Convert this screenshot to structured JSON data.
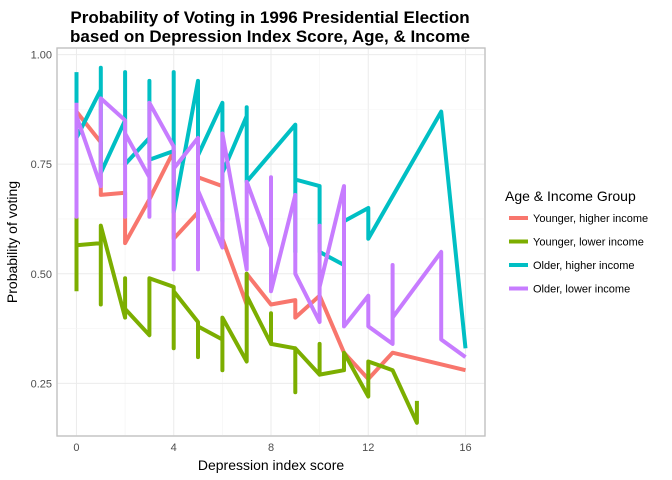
{
  "chart_data": {
    "type": "line",
    "title": "Probability of Voting in 1996 Presidential Election",
    "subtitle": "based on Depression Index Score, Age, & Income",
    "xlabel": "Depression index score",
    "ylabel": "Probability of voting",
    "xlim": [
      -0.8,
      16.8
    ],
    "ylim": [
      0.13,
      1.015
    ],
    "x_ticks": [
      0,
      4,
      8,
      12,
      16
    ],
    "x_tick_labels": [
      "0",
      "4",
      "8",
      "12",
      "16"
    ],
    "y_ticks": [
      0.25,
      0.5,
      0.75,
      1.0
    ],
    "y_tick_labels": [
      "0.25",
      "0.50",
      "0.75",
      "1.00"
    ],
    "grid": true,
    "legend_title": "Age & Income Group",
    "legend_position": "right",
    "series": [
      {
        "name": "Younger, higher income",
        "color": "#F8766D",
        "points": [
          [
            0,
            0.72
          ],
          [
            0,
            0.87
          ],
          [
            1,
            0.8
          ],
          [
            1,
            0.68
          ],
          [
            2,
            0.685
          ],
          [
            2,
            0.57
          ],
          [
            3,
            0.67
          ],
          [
            4,
            0.78
          ],
          [
            4,
            0.58
          ],
          [
            5,
            0.64
          ],
          [
            5,
            0.72
          ],
          [
            6,
            0.7
          ],
          [
            6,
            0.58
          ],
          [
            7,
            0.43
          ],
          [
            7,
            0.5
          ],
          [
            8,
            0.43
          ],
          [
            9,
            0.44
          ],
          [
            9,
            0.4
          ],
          [
            10,
            0.45
          ],
          [
            11,
            0.32
          ],
          [
            12,
            0.26
          ],
          [
            13,
            0.32
          ],
          [
            16,
            0.28
          ]
        ]
      },
      {
        "name": "Younger, lower income",
        "color": "#7CAE00",
        "points": [
          [
            0,
            0.46
          ],
          [
            0,
            0.63
          ],
          [
            0,
            0.565
          ],
          [
            1,
            0.57
          ],
          [
            1,
            0.43
          ],
          [
            1,
            0.61
          ],
          [
            2,
            0.4
          ],
          [
            2,
            0.49
          ],
          [
            2,
            0.42
          ],
          [
            3,
            0.36
          ],
          [
            3,
            0.49
          ],
          [
            4,
            0.47
          ],
          [
            4,
            0.33
          ],
          [
            4,
            0.46
          ],
          [
            5,
            0.39
          ],
          [
            5,
            0.31
          ],
          [
            5,
            0.38
          ],
          [
            6,
            0.35
          ],
          [
            6,
            0.28
          ],
          [
            6,
            0.4
          ],
          [
            7,
            0.3
          ],
          [
            7,
            0.5
          ],
          [
            7,
            0.45
          ],
          [
            8,
            0.34
          ],
          [
            8,
            0.41
          ],
          [
            8,
            0.34
          ],
          [
            9,
            0.33
          ],
          [
            9,
            0.23
          ],
          [
            9,
            0.33
          ],
          [
            10,
            0.27
          ],
          [
            10,
            0.34
          ],
          [
            10,
            0.27
          ],
          [
            11,
            0.28
          ],
          [
            11,
            0.32
          ],
          [
            12,
            0.22
          ],
          [
            12,
            0.3
          ],
          [
            13,
            0.28
          ],
          [
            14,
            0.16
          ],
          [
            14,
            0.21
          ]
        ]
      },
      {
        "name": "Older, higher income",
        "color": "#00BFC4",
        "points": [
          [
            0,
            0.96
          ],
          [
            0,
            0.81
          ],
          [
            1,
            0.92
          ],
          [
            1,
            0.97
          ],
          [
            1,
            0.73
          ],
          [
            2,
            0.85
          ],
          [
            2,
            0.96
          ],
          [
            2,
            0.75
          ],
          [
            3,
            0.81
          ],
          [
            3,
            0.94
          ],
          [
            3,
            0.76
          ],
          [
            4,
            0.78
          ],
          [
            4,
            0.96
          ],
          [
            4,
            0.64
          ],
          [
            5,
            0.94
          ],
          [
            5,
            0.77
          ],
          [
            6,
            0.89
          ],
          [
            6,
            0.62
          ],
          [
            6,
            0.73
          ],
          [
            7,
            0.86
          ],
          [
            7,
            0.88
          ],
          [
            7,
            0.71
          ],
          [
            9,
            0.84
          ],
          [
            9,
            0.55
          ],
          [
            9,
            0.715
          ],
          [
            10,
            0.7
          ],
          [
            10,
            0.55
          ],
          [
            11,
            0.52
          ],
          [
            11,
            0.62
          ],
          [
            12,
            0.65
          ],
          [
            12,
            0.58
          ],
          [
            15,
            0.87
          ],
          [
            16,
            0.33
          ]
        ]
      },
      {
        "name": "Older, lower income",
        "color": "#C77CFF",
        "points": [
          [
            0,
            0.89
          ],
          [
            0,
            0.63
          ],
          [
            0,
            0.86
          ],
          [
            1,
            0.7
          ],
          [
            1,
            0.9
          ],
          [
            2,
            0.85
          ],
          [
            2,
            0.63
          ],
          [
            2,
            0.82
          ],
          [
            3,
            0.72
          ],
          [
            3,
            0.63
          ],
          [
            3,
            0.89
          ],
          [
            4,
            0.79
          ],
          [
            4,
            0.51
          ],
          [
            4,
            0.74
          ],
          [
            5,
            0.81
          ],
          [
            5,
            0.51
          ],
          [
            5,
            0.69
          ],
          [
            6,
            0.56
          ],
          [
            6,
            0.82
          ],
          [
            7,
            0.51
          ],
          [
            7,
            0.71
          ],
          [
            8,
            0.56
          ],
          [
            8,
            0.72
          ],
          [
            8,
            0.46
          ],
          [
            9,
            0.68
          ],
          [
            9,
            0.5
          ],
          [
            10,
            0.39
          ],
          [
            10,
            0.61
          ],
          [
            10,
            0.47
          ],
          [
            11,
            0.7
          ],
          [
            11,
            0.38
          ],
          [
            12,
            0.45
          ],
          [
            12,
            0.38
          ],
          [
            13,
            0.34
          ],
          [
            13,
            0.52
          ],
          [
            13,
            0.4
          ],
          [
            15,
            0.55
          ],
          [
            15,
            0.35
          ],
          [
            16,
            0.31
          ]
        ]
      }
    ]
  }
}
